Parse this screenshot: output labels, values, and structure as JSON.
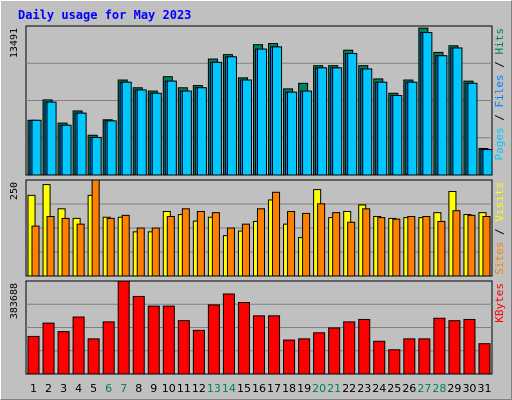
{
  "title": "Daily usage for May 2023",
  "colors": {
    "background": "#c0c0c0",
    "panel": "#c0c0c0",
    "grid": "#808080",
    "title": "#0000ff",
    "hits": "#00805c",
    "files": "#0080ff",
    "pages": "#00c8ff",
    "sites": "#ff8000",
    "visits": "#ffff00",
    "kbytes": "#ff0000",
    "weekend_label": "#00805c",
    "weekday_label": "#000000"
  },
  "chart_data": [
    {
      "type": "bar",
      "panel": "top",
      "ylabel_max": "13491",
      "legend": [
        "Pages",
        "Files",
        "Hits"
      ],
      "categories": [
        "1",
        "2",
        "3",
        "4",
        "5",
        "6",
        "7",
        "8",
        "9",
        "10",
        "11",
        "12",
        "13",
        "14",
        "15",
        "16",
        "17",
        "18",
        "19",
        "20",
        "21",
        "22",
        "23",
        "24",
        "25",
        "26",
        "27",
        "28",
        "29",
        "30",
        "31"
      ],
      "weekend": [
        "6",
        "7",
        "13",
        "14",
        "20",
        "21",
        "27",
        "28"
      ],
      "ylim": [
        0,
        13491
      ],
      "series": [
        {
          "name": "Hits",
          "values": [
            4950,
            6800,
            4700,
            5800,
            3600,
            5000,
            8600,
            7900,
            7600,
            8900,
            7900,
            8100,
            10500,
            10900,
            8800,
            11800,
            11900,
            7800,
            8300,
            9900,
            9900,
            11300,
            9900,
            8700,
            7400,
            8600,
            13300,
            11100,
            11700,
            8500,
            2400
          ]
        },
        {
          "name": "Files",
          "values": [
            4950,
            6600,
            4500,
            5600,
            3400,
            4900,
            8400,
            7700,
            7400,
            8500,
            7600,
            7900,
            10200,
            10700,
            8600,
            11400,
            11600,
            7500,
            7600,
            9700,
            9700,
            11000,
            9600,
            8400,
            7200,
            8400,
            12900,
            10800,
            11500,
            8300,
            2300
          ]
        },
        {
          "name": "Pages",
          "values": [
            4950,
            6600,
            4500,
            5600,
            3400,
            4900,
            8400,
            7700,
            7400,
            8500,
            7600,
            7900,
            10200,
            10700,
            8600,
            11400,
            11600,
            7500,
            7600,
            9700,
            9700,
            11000,
            9600,
            8400,
            7200,
            8400,
            12900,
            10800,
            11500,
            8300,
            2300
          ]
        }
      ]
    },
    {
      "type": "bar",
      "panel": "middle",
      "ylabel_max": "250",
      "legend": [
        "Sites",
        "Visits"
      ],
      "categories": [
        "1",
        "2",
        "3",
        "4",
        "5",
        "6",
        "7",
        "8",
        "9",
        "10",
        "11",
        "12",
        "13",
        "14",
        "15",
        "16",
        "17",
        "18",
        "19",
        "20",
        "21",
        "22",
        "23",
        "24",
        "25",
        "26",
        "27",
        "28",
        "29",
        "30",
        "31"
      ],
      "ylim": [
        0,
        250
      ],
      "series": [
        {
          "name": "Visits",
          "values": [
            210,
            238,
            175,
            150,
            210,
            153,
            153,
            115,
            115,
            168,
            160,
            143,
            153,
            105,
            117,
            142,
            198,
            135,
            100,
            225,
            152,
            168,
            185,
            155,
            150,
            152,
            152,
            165,
            220,
            160,
            165
          ]
        },
        {
          "name": "Sites",
          "values": [
            130,
            155,
            150,
            135,
            250,
            150,
            158,
            125,
            125,
            155,
            175,
            168,
            165,
            125,
            135,
            175,
            218,
            168,
            163,
            188,
            165,
            140,
            175,
            152,
            148,
            155,
            155,
            142,
            170,
            158,
            155
          ]
        }
      ]
    },
    {
      "type": "bar",
      "panel": "bottom",
      "ylabel_max": "383688",
      "legend": [
        "KBytes"
      ],
      "categories": [
        "1",
        "2",
        "3",
        "4",
        "5",
        "6",
        "7",
        "8",
        "9",
        "10",
        "11",
        "12",
        "13",
        "14",
        "15",
        "16",
        "17",
        "18",
        "19",
        "20",
        "21",
        "22",
        "23",
        "24",
        "25",
        "26",
        "27",
        "28",
        "29",
        "30",
        "31"
      ],
      "ylim": [
        0,
        383688
      ],
      "series": [
        {
          "name": "KBytes",
          "values": [
            155000,
            210000,
            175000,
            235000,
            145000,
            215000,
            383000,
            320000,
            280000,
            280000,
            220000,
            180000,
            285000,
            330000,
            295000,
            240000,
            240000,
            140000,
            145000,
            170000,
            190000,
            215000,
            225000,
            135000,
            100000,
            145000,
            145000,
            230000,
            220000,
            225000,
            125000
          ]
        }
      ]
    }
  ]
}
